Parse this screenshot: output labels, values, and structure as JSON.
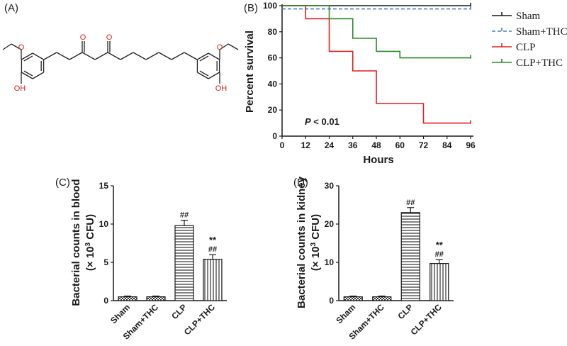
{
  "panels": {
    "a": "(A)",
    "b": "(B)",
    "c": "(C)",
    "d": "(D)"
  },
  "molecule": {
    "atom_o": "O",
    "atom_oh": "OH",
    "o_color": "#d22020",
    "bond_color": "#222222"
  },
  "chart_data": [
    {
      "id": "B",
      "type": "line",
      "subtype": "survival-step",
      "xlabel": "Hours",
      "ylabel": "Percent survival",
      "xlim": [
        0,
        96
      ],
      "ylim": [
        0,
        100
      ],
      "xticks": [
        0,
        12,
        24,
        36,
        48,
        60,
        72,
        84,
        96
      ],
      "yticks": [
        0,
        20,
        40,
        60,
        80,
        100
      ],
      "annotation": {
        "italic": "P",
        "text": " < 0.01"
      },
      "legend_position": "right",
      "series": [
        {
          "name": "Sham",
          "color": "#1a1a1a",
          "dashed": false,
          "steps": [
            [
              0,
              100
            ],
            [
              96,
              100
            ]
          ]
        },
        {
          "name": "Sham+THC",
          "color": "#4a7fc1",
          "dashed": true,
          "steps": [
            [
              0,
              97.5
            ],
            [
              96,
              97.5
            ]
          ]
        },
        {
          "name": "CLP",
          "color": "#e02020",
          "dashed": false,
          "steps": [
            [
              0,
              100
            ],
            [
              12,
              90
            ],
            [
              24,
              65
            ],
            [
              36,
              50
            ],
            [
              48,
              25
            ],
            [
              72,
              10
            ],
            [
              96,
              10
            ]
          ]
        },
        {
          "name": "CLP+THC",
          "color": "#2a8a2a",
          "dashed": false,
          "steps": [
            [
              0,
              100
            ],
            [
              24,
              90
            ],
            [
              36,
              75
            ],
            [
              48,
              65
            ],
            [
              60,
              60
            ],
            [
              96,
              60
            ]
          ]
        }
      ]
    },
    {
      "id": "C",
      "type": "bar",
      "ylabel_line1": "Bacterial counts in blood",
      "ylabel_line2_prefix": "(× 10",
      "ylabel_line2_sup": "3",
      "ylabel_line2_suffix": " CFU)",
      "ylim": [
        0,
        15
      ],
      "yticks": [
        0,
        5,
        10,
        15
      ],
      "categories": [
        "Sham",
        "Sham+THC",
        "CLP",
        "CLP+THC"
      ],
      "values": [
        0.5,
        0.5,
        9.8,
        5.4
      ],
      "errors": [
        0.1,
        0.1,
        0.7,
        0.6
      ],
      "patterns": [
        "checker",
        "checker",
        "horizontal",
        "vertical"
      ],
      "marks": [
        [],
        [],
        [
          "##"
        ],
        [
          "**",
          "##"
        ]
      ]
    },
    {
      "id": "D",
      "type": "bar",
      "ylabel_line1": "Bacterial counts in kidney",
      "ylabel_line2_prefix": "(× 10",
      "ylabel_line2_sup": "3",
      "ylabel_line2_suffix": " CFU)",
      "ylim": [
        0,
        30
      ],
      "yticks": [
        0,
        10,
        20,
        30
      ],
      "categories": [
        "Sham",
        "Sham+THC",
        "CLP",
        "CLP+THC"
      ],
      "values": [
        1.0,
        1.0,
        23.0,
        9.7
      ],
      "errors": [
        0.2,
        0.2,
        1.3,
        1.0
      ],
      "patterns": [
        "checker",
        "checker",
        "horizontal",
        "vertical"
      ],
      "marks": [
        [],
        [],
        [
          "##"
        ],
        [
          "**",
          "##"
        ]
      ]
    }
  ]
}
